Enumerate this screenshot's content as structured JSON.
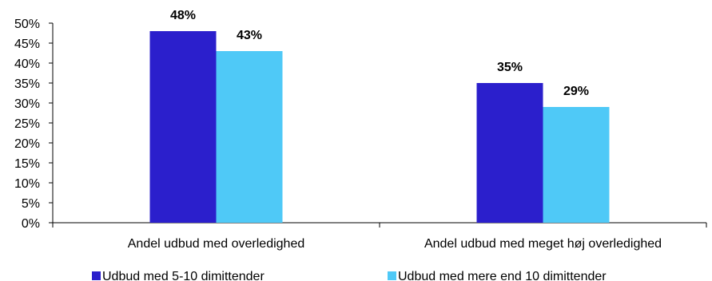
{
  "chart_data": {
    "type": "bar",
    "categories": [
      "Andel udbud med overledighed",
      "Andel udbud med meget høj overledighed"
    ],
    "series": [
      {
        "name": "Udbud med 5-10 dimittender",
        "values": [
          48,
          35
        ],
        "color": "#2b1fcc",
        "labels": [
          "48%",
          "35%"
        ]
      },
      {
        "name": "Udbud med mere end 10 dimittender",
        "values": [
          43,
          29
        ],
        "color": "#4fc9f7",
        "labels": [
          "43%",
          "29%"
        ]
      }
    ],
    "ylim": [
      0,
      50
    ],
    "yticks": [
      "0%",
      "5%",
      "10%",
      "15%",
      "20%",
      "25%",
      "30%",
      "35%",
      "40%",
      "45%",
      "50%"
    ],
    "legend_position": "bottom",
    "grid": false
  }
}
